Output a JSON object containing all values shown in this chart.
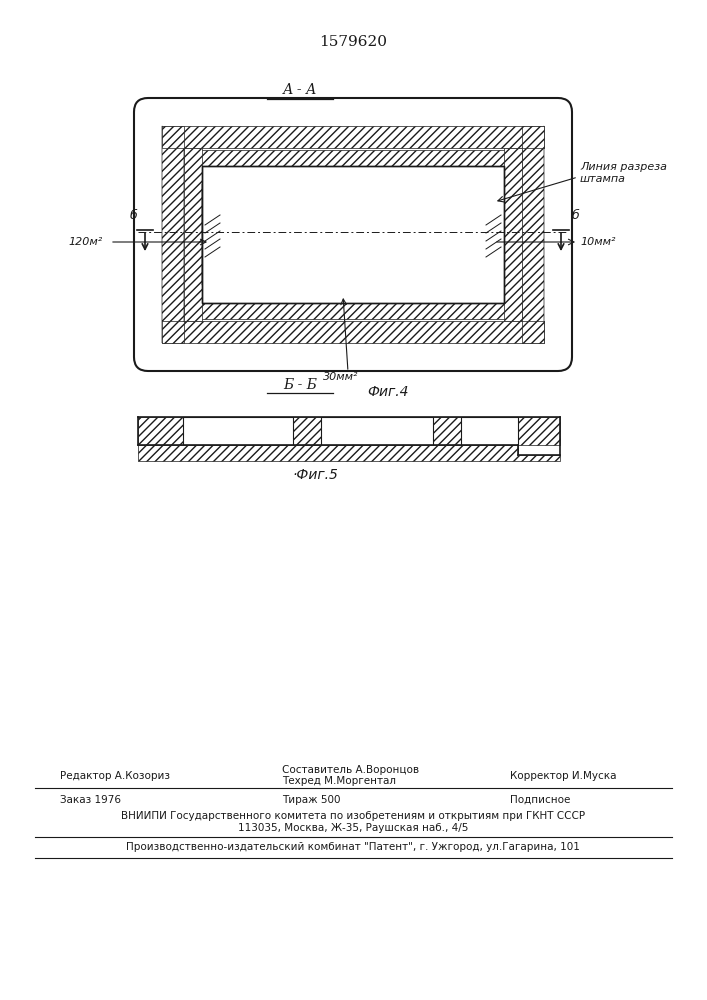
{
  "patent_number": "1579620",
  "fig4_label": "А - А",
  "fig4_caption": "Фиг.4",
  "fig5_label": "Б - Б",
  "fig5_caption": "·Фиг.5",
  "annotation_120": "120м²",
  "annotation_30": "30мм²",
  "annotation_10": "10мм²",
  "annotation_liniya_1": "Линия разреза",
  "annotation_liniya_2": "штампа",
  "left_b": "б",
  "right_b": "б",
  "editor_line": "Редактор А.Козориз",
  "compiler_line1": "Составитель А.Воронцов",
  "compiler_line2": "Техред М.Моргентал",
  "corrector_line": "Корректор И.Муска",
  "order_line": "Заказ 1976",
  "tirazh_line": "Тираж 500",
  "podpisnoe_line": "Подписное",
  "vniipи_line": "ВНИИПИ Государственного комитета по изобретениям и открытиям при ГКНТ СССР",
  "address_line": "113035, Москва, Ж-35, Раушская наб., 4/5",
  "factory_line": "Производственно-издательский комбинат \"Патент\", г. Ужгород, ул.Гагарина, 101",
  "bg_color": "#ffffff",
  "line_color": "#1a1a1a"
}
